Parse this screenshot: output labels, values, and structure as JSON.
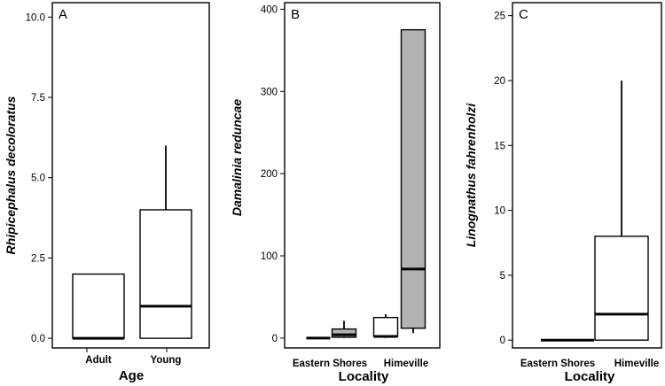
{
  "chart_data": [
    {
      "type": "box",
      "panel": "A",
      "xlabel": "Age",
      "ylabel": "Rhipicephalus decoloratus",
      "ylim": [
        -0.3,
        10.45
      ],
      "yticks": [
        0.0,
        2.5,
        5.0,
        7.5,
        10.0
      ],
      "ytick_labels": [
        "0.0",
        "2.5",
        "5.0",
        "7.5",
        "10.0"
      ],
      "categories": [
        "Adult",
        "Young"
      ],
      "boxes": [
        {
          "category": "Adult",
          "fill": "#ffffff",
          "whisker_low": 0,
          "q1": 0,
          "median": 0,
          "q3": 2,
          "whisker_high": 2
        },
        {
          "category": "Young",
          "fill": "#ffffff",
          "whisker_low": 0,
          "q1": 0,
          "median": 1,
          "q3": 4,
          "whisker_high": 6
        }
      ]
    },
    {
      "type": "box",
      "panel": "B",
      "xlabel": "Locality",
      "ylabel": "Damalinia reduncae",
      "ylim": [
        -12,
        408
      ],
      "yticks": [
        0,
        100,
        200,
        300,
        400
      ],
      "ytick_labels": [
        "0",
        "100",
        "200",
        "300",
        "400"
      ],
      "categories": [
        "Eastern Shores",
        "Himeville"
      ],
      "boxes": [
        {
          "category": "Eastern Shores",
          "fill": "#ffffff",
          "whisker_low": 0,
          "q1": 0,
          "median": 0,
          "q3": 0,
          "whisker_high": 0
        },
        {
          "category": "Eastern Shores",
          "fill": "#b3b3b3",
          "whisker_low": 0,
          "q1": 1,
          "median": 4,
          "q3": 11,
          "whisker_high": 21
        },
        {
          "category": "Himeville",
          "fill": "#ffffff",
          "whisker_low": 0,
          "q1": 2,
          "median": 2,
          "q3": 25,
          "whisker_high": 29
        },
        {
          "category": "Himeville",
          "fill": "#b3b3b3",
          "whisker_low": 6,
          "q1": 12,
          "median": 84,
          "q3": 375,
          "whisker_high": 375
        }
      ]
    },
    {
      "type": "box",
      "panel": "C",
      "xlabel": "Locality",
      "ylabel": "Linognathus fahrenholzi",
      "ylim": [
        -0.6,
        26
      ],
      "yticks": [
        0,
        5,
        10,
        15,
        20,
        25
      ],
      "ytick_labels": [
        "0",
        "5",
        "10",
        "15",
        "20",
        "25"
      ],
      "categories": [
        "Eastern Shores",
        "Himeville"
      ],
      "boxes": [
        {
          "category": "Eastern Shores",
          "fill": "#ffffff",
          "whisker_low": 0,
          "q1": 0,
          "median": 0,
          "q3": 0,
          "whisker_high": 0
        },
        {
          "category": "Himeville",
          "fill": "#ffffff",
          "whisker_low": 0,
          "q1": 0,
          "median": 2,
          "q3": 8,
          "whisker_high": 20
        }
      ]
    }
  ]
}
